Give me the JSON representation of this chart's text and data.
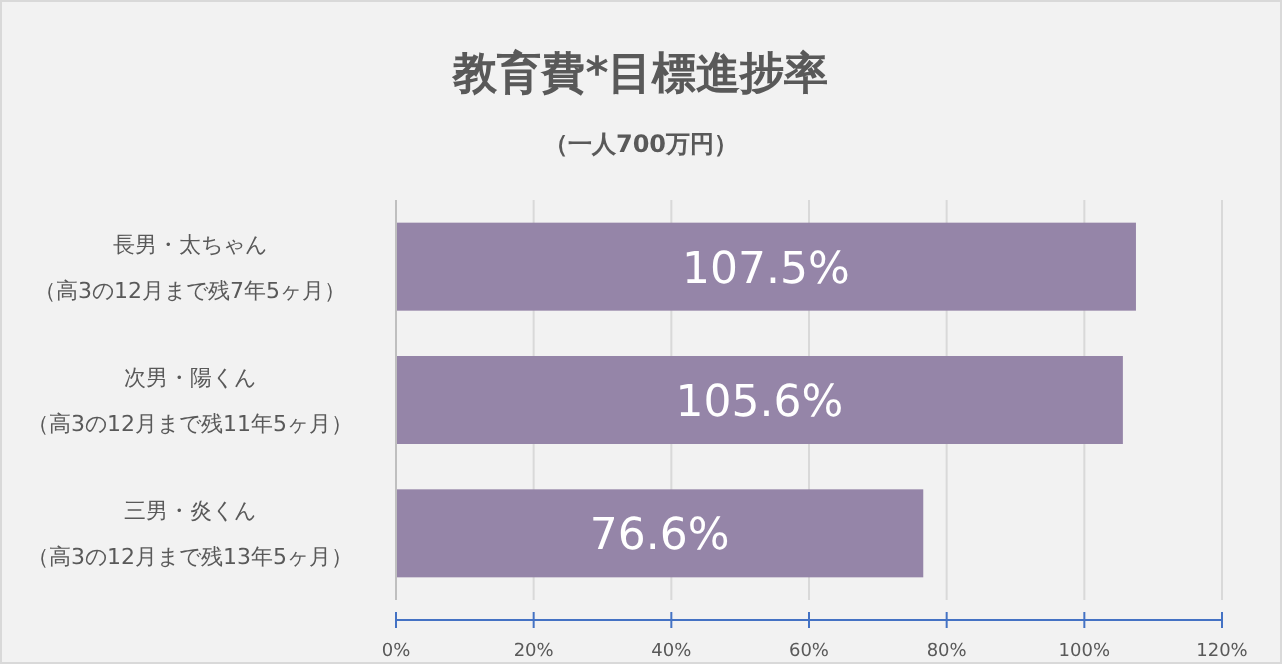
{
  "chart_data": {
    "type": "bar",
    "orientation": "horizontal",
    "title": "教育費*目標進捗率",
    "subtitle": "（一人700万円）",
    "categories": [
      "長男・太ちゃん（高3の12月まで残7年5ヶ月）",
      "次男・陽くん（高3の12月まで残11年5ヶ月）",
      "三男・炎くん（高3の12月まで残13年5ヶ月）"
    ],
    "values": [
      107.5,
      105.6,
      76.6
    ],
    "value_labels": [
      "107.5%",
      "105.6%",
      "76.6%"
    ],
    "color": "#9585a8",
    "xlim": [
      0,
      120
    ],
    "xticks": [
      {
        "value": 0,
        "label": "0%"
      },
      {
        "value": 20,
        "label": "20%"
      },
      {
        "value": 40,
        "label": "40%"
      },
      {
        "value": 60,
        "label": "60%"
      },
      {
        "value": 80,
        "label": "80%"
      },
      {
        "value": 100,
        "label": "100%"
      },
      {
        "value": 120,
        "label": "120%"
      }
    ],
    "grid": "x"
  }
}
